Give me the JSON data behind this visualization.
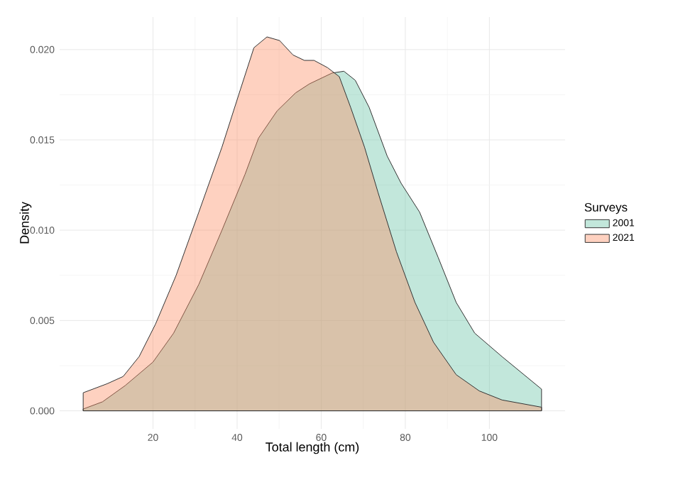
{
  "chart_data": {
    "type": "area",
    "xlabel": "Total length (cm)",
    "ylabel": "Density",
    "legend_title": "Surveys",
    "xlim": [
      -2.2,
      118
    ],
    "ylim": [
      -0.001,
      0.0218
    ],
    "xticks": [
      20,
      40,
      60,
      80,
      100
    ],
    "yticks": [
      {
        "value": 0,
        "label": "0.000"
      },
      0.005,
      {
        "value": 0.01,
        "label": "0.010"
      },
      0.015,
      {
        "value": 0.02,
        "label": "0.020"
      }
    ],
    "grid": true,
    "legend": "right",
    "series": [
      {
        "name": "2001",
        "color": "#66c2a5",
        "x": [
          3.4,
          8,
          13.4,
          20,
          24.9,
          30.9,
          36.4,
          41.9,
          45.1,
          49.5,
          53.9,
          57.2,
          62.6,
          65.4,
          68.1,
          71.4,
          75.7,
          79,
          83.4,
          87.8,
          92.1,
          96.5,
          103,
          112.4
        ],
        "values": [
          0.0001,
          0.0005,
          0.0014,
          0.0027,
          0.0043,
          0.007,
          0.01,
          0.0131,
          0.0151,
          0.0166,
          0.0176,
          0.0181,
          0.0187,
          0.0188,
          0.0183,
          0.0168,
          0.0141,
          0.0126,
          0.011,
          0.0085,
          0.006,
          0.0043,
          0.003,
          0.0012
        ]
      },
      {
        "name": "2021",
        "color": "#fc8d62",
        "x": [
          3.4,
          9.1,
          12.9,
          16.7,
          20.6,
          25.5,
          30.9,
          36.4,
          40.8,
          44,
          47.1,
          50.1,
          53.3,
          56,
          58.3,
          61.5,
          64.3,
          67,
          70.3,
          73.5,
          77.9,
          82.3,
          86.7,
          92.1,
          97.6,
          103,
          112.4
        ],
        "values": [
          0.001,
          0.0015,
          0.0019,
          0.003,
          0.0048,
          0.0075,
          0.011,
          0.0146,
          0.0178,
          0.0201,
          0.0207,
          0.0205,
          0.0197,
          0.0194,
          0.0194,
          0.019,
          0.0185,
          0.0168,
          0.0146,
          0.0121,
          0.0088,
          0.006,
          0.0038,
          0.002,
          0.0011,
          0.0006,
          0.0002
        ]
      }
    ]
  }
}
